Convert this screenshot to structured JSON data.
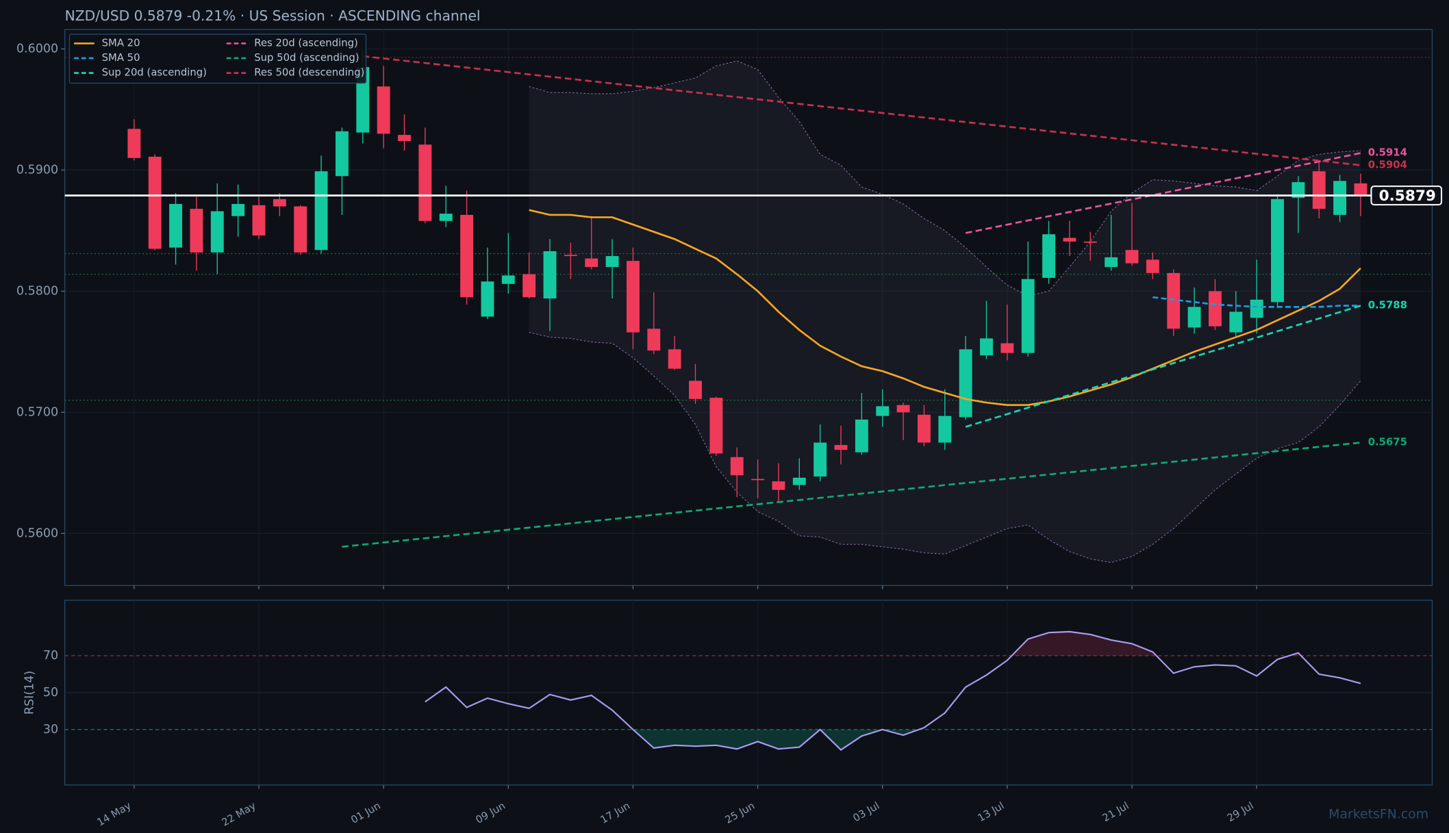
{
  "chart_data": {
    "type": "candlestick",
    "title": "NZD/USD   0.5879   -0.21%  ·  US Session  ·  ASCENDING channel",
    "categories": [
      "14 May",
      null,
      null,
      null,
      null,
      null,
      "22 May",
      null,
      null,
      null,
      null,
      null,
      "01 Jun",
      null,
      null,
      null,
      null,
      null,
      "09 Jun",
      null,
      null,
      null,
      null,
      null,
      "17 Jun",
      null,
      null,
      null,
      null,
      null,
      "25 Jun",
      null,
      null,
      null,
      null,
      null,
      "03 Jul",
      null,
      null,
      null,
      null,
      null,
      "13 Jul",
      null,
      null,
      null,
      null,
      null,
      "21 Jul",
      null,
      null,
      null,
      null,
      null,
      "29 Jul",
      null,
      null,
      null,
      null,
      null
    ],
    "open": [
      0.5934,
      0.5911,
      0.5836,
      0.5868,
      0.5832,
      0.5862,
      0.5871,
      0.5876,
      0.587,
      0.5834,
      0.5895,
      0.5931,
      0.5969,
      0.5929,
      0.5921,
      0.5858,
      0.5863,
      0.5779,
      0.5806,
      0.5814,
      0.5794,
      0.583,
      0.5827,
      0.582,
      0.5825,
      0.5769,
      0.5752,
      0.5726,
      0.5712,
      0.5663,
      0.5645,
      0.5643,
      0.564,
      0.5647,
      0.5673,
      0.5667,
      0.5697,
      0.5706,
      0.5698,
      0.5675,
      0.5696,
      0.5747,
      0.5757,
      0.5749,
      0.5811,
      0.5844,
      0.5841,
      0.582,
      0.5834,
      0.5826,
      0.5815,
      0.577,
      0.58,
      0.5766,
      0.5778,
      0.5791,
      0.5877,
      0.5899,
      0.5863,
      0.5889
    ],
    "high": [
      0.5942,
      0.5913,
      0.5881,
      0.5878,
      0.5889,
      0.5888,
      0.5878,
      0.5881,
      0.5871,
      0.5912,
      0.5935,
      0.5999,
      0.5986,
      0.5946,
      0.5935,
      0.5887,
      0.5883,
      0.5836,
      0.5848,
      0.5832,
      0.5843,
      0.584,
      0.5862,
      0.5843,
      0.5836,
      0.5799,
      0.5763,
      0.574,
      0.5713,
      0.5671,
      0.5661,
      0.5658,
      0.5662,
      0.569,
      0.5689,
      0.5716,
      0.5719,
      0.5708,
      0.5706,
      0.5719,
      0.5763,
      0.5792,
      0.5789,
      0.5841,
      0.5858,
      0.5858,
      0.5849,
      0.5863,
      0.5873,
      0.5832,
      0.5818,
      0.5803,
      0.581,
      0.58,
      0.5826,
      0.588,
      0.5895,
      0.5906,
      0.5896,
      0.5897
    ],
    "low": [
      0.5908,
      0.5834,
      0.5822,
      0.5817,
      0.5814,
      0.5845,
      0.5843,
      0.5862,
      0.583,
      0.5831,
      0.5863,
      0.5922,
      0.5918,
      0.5916,
      0.5856,
      0.5853,
      0.5789,
      0.5777,
      0.5798,
      0.5794,
      0.5767,
      0.581,
      0.5818,
      0.5794,
      0.5752,
      0.5748,
      0.5735,
      0.5707,
      0.5664,
      0.563,
      0.5629,
      0.5626,
      0.5636,
      0.5643,
      0.5657,
      0.5665,
      0.5688,
      0.5677,
      0.5672,
      0.5669,
      0.5694,
      0.5744,
      0.5743,
      0.5746,
      0.5806,
      0.5829,
      0.5825,
      0.5817,
      0.5821,
      0.581,
      0.5763,
      0.5765,
      0.5768,
      0.5763,
      0.5765,
      0.5786,
      0.5848,
      0.586,
      0.5857,
      0.5862
    ],
    "close": [
      0.591,
      0.5835,
      0.5872,
      0.5832,
      0.5866,
      0.5872,
      0.5846,
      0.587,
      0.5832,
      0.5899,
      0.5932,
      0.5985,
      0.593,
      0.5924,
      0.5858,
      0.5864,
      0.5795,
      0.5808,
      0.5813,
      0.5795,
      0.5833,
      0.5829,
      0.582,
      0.5829,
      0.5766,
      0.5751,
      0.5736,
      0.5711,
      0.5666,
      0.5648,
      0.5644,
      0.5636,
      0.5646,
      0.5675,
      0.5669,
      0.5694,
      0.5705,
      0.57,
      0.5675,
      0.5697,
      0.5752,
      0.5761,
      0.5749,
      0.581,
      0.5847,
      0.5841,
      0.584,
      0.5828,
      0.5823,
      0.5815,
      0.5769,
      0.5787,
      0.5771,
      0.5783,
      0.5793,
      0.5876,
      0.589,
      0.5868,
      0.5891,
      0.5879
    ],
    "up_color": "#14c9a0",
    "down_color": "#f03a5a",
    "ylim": [
      0.5557,
      0.6016
    ],
    "yticks": [
      {
        "value": 0.56,
        "label": "0.5600"
      },
      {
        "value": 0.57,
        "label": "0.5700"
      },
      {
        "value": 0.58,
        "label": "0.5800"
      },
      {
        "value": 0.59,
        "label": "0.5900"
      },
      {
        "value": 0.6,
        "label": "0.6000"
      }
    ],
    "grid": true,
    "lines": [
      {
        "name": "SMA 20",
        "color": "#f5a623",
        "values": [
          null,
          null,
          null,
          null,
          null,
          null,
          null,
          null,
          null,
          null,
          null,
          null,
          null,
          null,
          null,
          null,
          null,
          null,
          null,
          0.5867,
          0.5863,
          0.5863,
          0.5861,
          0.5861,
          0.5855,
          0.5849,
          0.5843,
          0.5835,
          0.5827,
          0.5814,
          0.58,
          0.5783,
          0.5768,
          0.5755,
          0.5746,
          0.5738,
          0.5734,
          0.5728,
          0.5721,
          0.5716,
          0.5711,
          0.5708,
          0.5706,
          0.5706,
          0.5709,
          0.5713,
          0.5718,
          0.5723,
          0.5729,
          0.5736,
          0.5743,
          0.575,
          0.5756,
          0.5762,
          0.5768,
          0.5776,
          0.5784,
          0.5792,
          0.5802,
          0.5819
        ]
      },
      {
        "name": "SMA 50",
        "color": "#1e9be0",
        "dashed": true,
        "values": [
          null,
          null,
          null,
          null,
          null,
          null,
          null,
          null,
          null,
          null,
          null,
          null,
          null,
          null,
          null,
          null,
          null,
          null,
          null,
          null,
          null,
          null,
          null,
          null,
          null,
          null,
          null,
          null,
          null,
          null,
          null,
          null,
          null,
          null,
          null,
          null,
          null,
          null,
          null,
          null,
          null,
          null,
          null,
          null,
          null,
          null,
          null,
          null,
          null,
          0.5795,
          0.5793,
          0.5791,
          0.5789,
          0.5788,
          0.5787,
          0.5787,
          0.5787,
          0.5787,
          0.5788,
          0.5788
        ]
      }
    ],
    "band": {
      "color": "#8a6aa8",
      "upper": [
        null,
        null,
        null,
        null,
        null,
        null,
        null,
        null,
        null,
        null,
        null,
        null,
        null,
        null,
        null,
        null,
        null,
        null,
        null,
        0.5969,
        0.5964,
        0.5964,
        0.5963,
        0.5963,
        0.5965,
        0.5968,
        0.5972,
        0.5976,
        0.5986,
        0.599,
        0.5983,
        0.596,
        0.594,
        0.5913,
        0.5904,
        0.5886,
        0.588,
        0.5872,
        0.586,
        0.585,
        0.5836,
        0.582,
        0.5805,
        0.5796,
        0.58,
        0.582,
        0.5841,
        0.5866,
        0.5881,
        0.5892,
        0.5891,
        0.5889,
        0.5887,
        0.5886,
        0.5883,
        0.5895,
        0.5908,
        0.5913,
        0.5915,
        0.5916
      ],
      "lower": [
        null,
        null,
        null,
        null,
        null,
        null,
        null,
        null,
        null,
        null,
        null,
        null,
        null,
        null,
        null,
        null,
        null,
        null,
        null,
        0.5766,
        0.5762,
        0.5761,
        0.5758,
        0.5757,
        0.5745,
        0.573,
        0.5714,
        0.569,
        0.5655,
        0.5634,
        0.5618,
        0.561,
        0.5598,
        0.5597,
        0.5591,
        0.5591,
        0.5589,
        0.5587,
        0.5584,
        0.5583,
        0.559,
        0.5597,
        0.5604,
        0.5607,
        0.5595,
        0.5585,
        0.5579,
        0.5576,
        0.5581,
        0.5591,
        0.5604,
        0.562,
        0.5636,
        0.5649,
        0.5662,
        0.567,
        0.5675,
        0.5688,
        0.5706,
        0.5726
      ]
    },
    "trendlines": [
      {
        "name": "Sup 20d (ascending)",
        "color": "#19d4b0",
        "dashed": true,
        "x": [
          40,
          59
        ],
        "values": [
          0.5688,
          0.5788
        ]
      },
      {
        "name": "Res 20d (ascending)",
        "color": "#e8559b",
        "dashed": true,
        "x": [
          40,
          59
        ],
        "values": [
          0.5848,
          0.5914
        ]
      },
      {
        "name": "Sup 50d (ascending)",
        "color": "#12a874",
        "dashed": true,
        "x": [
          10,
          59
        ],
        "values": [
          0.5589,
          0.5675
        ]
      },
      {
        "name": "Res 50d (descending)",
        "color": "#c8304e",
        "dashed": true,
        "x": [
          11,
          59
        ],
        "values": [
          0.5994,
          0.5904
        ]
      }
    ],
    "levels": [
      {
        "value": 0.5993,
        "color": "#7a2232"
      },
      {
        "value": 0.5831,
        "color": "#1f6a42"
      },
      {
        "value": 0.5814,
        "color": "#1f6a42"
      },
      {
        "value": 0.571,
        "color": "#1f6a42"
      }
    ],
    "current_price": 0.5879,
    "rsi": {
      "ylabel": "RSI(14)",
      "color": "#a99cf0",
      "ylim": [
        0,
        100
      ],
      "yticks": [
        30,
        50,
        70
      ],
      "values": [
        null,
        null,
        null,
        null,
        null,
        null,
        null,
        null,
        null,
        null,
        null,
        null,
        null,
        null,
        45,
        53,
        42,
        47,
        44,
        41.5,
        49,
        46,
        48.5,
        40.5,
        30,
        20,
        21.5,
        21,
        21.5,
        19.5,
        23.5,
        19.5,
        20.5,
        30,
        19,
        26.5,
        30,
        27,
        31,
        39,
        53,
        59.5,
        67.5,
        79,
        82.5,
        83,
        81.5,
        78.5,
        76.5,
        72,
        60.5,
        64,
        65,
        64.5,
        59,
        68,
        71.5,
        60,
        58,
        55
      ]
    },
    "watermark": "MarketsFN.com"
  }
}
